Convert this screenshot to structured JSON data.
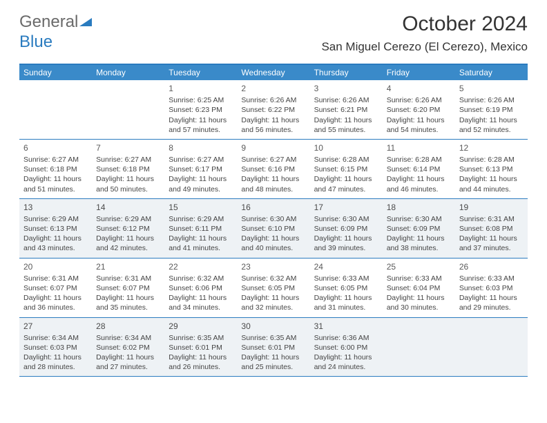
{
  "logo": {
    "text1": "General",
    "text2": "Blue"
  },
  "title": "October 2024",
  "location": "San Miguel Cerezo (El Cerezo), Mexico",
  "colors": {
    "header_bg": "#3a8ac9",
    "border": "#2a7bbf",
    "shaded": "#eef2f5",
    "text": "#333333"
  },
  "day_names": [
    "Sunday",
    "Monday",
    "Tuesday",
    "Wednesday",
    "Thursday",
    "Friday",
    "Saturday"
  ],
  "weeks": [
    [
      {
        "day": "",
        "sunrise": "",
        "sunset": "",
        "daylight": ""
      },
      {
        "day": "",
        "sunrise": "",
        "sunset": "",
        "daylight": ""
      },
      {
        "day": "1",
        "sunrise": "Sunrise: 6:25 AM",
        "sunset": "Sunset: 6:23 PM",
        "daylight": "Daylight: 11 hours and 57 minutes."
      },
      {
        "day": "2",
        "sunrise": "Sunrise: 6:26 AM",
        "sunset": "Sunset: 6:22 PM",
        "daylight": "Daylight: 11 hours and 56 minutes."
      },
      {
        "day": "3",
        "sunrise": "Sunrise: 6:26 AM",
        "sunset": "Sunset: 6:21 PM",
        "daylight": "Daylight: 11 hours and 55 minutes."
      },
      {
        "day": "4",
        "sunrise": "Sunrise: 6:26 AM",
        "sunset": "Sunset: 6:20 PM",
        "daylight": "Daylight: 11 hours and 54 minutes."
      },
      {
        "day": "5",
        "sunrise": "Sunrise: 6:26 AM",
        "sunset": "Sunset: 6:19 PM",
        "daylight": "Daylight: 11 hours and 52 minutes."
      }
    ],
    [
      {
        "day": "6",
        "sunrise": "Sunrise: 6:27 AM",
        "sunset": "Sunset: 6:18 PM",
        "daylight": "Daylight: 11 hours and 51 minutes."
      },
      {
        "day": "7",
        "sunrise": "Sunrise: 6:27 AM",
        "sunset": "Sunset: 6:18 PM",
        "daylight": "Daylight: 11 hours and 50 minutes."
      },
      {
        "day": "8",
        "sunrise": "Sunrise: 6:27 AM",
        "sunset": "Sunset: 6:17 PM",
        "daylight": "Daylight: 11 hours and 49 minutes."
      },
      {
        "day": "9",
        "sunrise": "Sunrise: 6:27 AM",
        "sunset": "Sunset: 6:16 PM",
        "daylight": "Daylight: 11 hours and 48 minutes."
      },
      {
        "day": "10",
        "sunrise": "Sunrise: 6:28 AM",
        "sunset": "Sunset: 6:15 PM",
        "daylight": "Daylight: 11 hours and 47 minutes."
      },
      {
        "day": "11",
        "sunrise": "Sunrise: 6:28 AM",
        "sunset": "Sunset: 6:14 PM",
        "daylight": "Daylight: 11 hours and 46 minutes."
      },
      {
        "day": "12",
        "sunrise": "Sunrise: 6:28 AM",
        "sunset": "Sunset: 6:13 PM",
        "daylight": "Daylight: 11 hours and 44 minutes."
      }
    ],
    [
      {
        "day": "13",
        "sunrise": "Sunrise: 6:29 AM",
        "sunset": "Sunset: 6:13 PM",
        "daylight": "Daylight: 11 hours and 43 minutes."
      },
      {
        "day": "14",
        "sunrise": "Sunrise: 6:29 AM",
        "sunset": "Sunset: 6:12 PM",
        "daylight": "Daylight: 11 hours and 42 minutes."
      },
      {
        "day": "15",
        "sunrise": "Sunrise: 6:29 AM",
        "sunset": "Sunset: 6:11 PM",
        "daylight": "Daylight: 11 hours and 41 minutes."
      },
      {
        "day": "16",
        "sunrise": "Sunrise: 6:30 AM",
        "sunset": "Sunset: 6:10 PM",
        "daylight": "Daylight: 11 hours and 40 minutes."
      },
      {
        "day": "17",
        "sunrise": "Sunrise: 6:30 AM",
        "sunset": "Sunset: 6:09 PM",
        "daylight": "Daylight: 11 hours and 39 minutes."
      },
      {
        "day": "18",
        "sunrise": "Sunrise: 6:30 AM",
        "sunset": "Sunset: 6:09 PM",
        "daylight": "Daylight: 11 hours and 38 minutes."
      },
      {
        "day": "19",
        "sunrise": "Sunrise: 6:31 AM",
        "sunset": "Sunset: 6:08 PM",
        "daylight": "Daylight: 11 hours and 37 minutes."
      }
    ],
    [
      {
        "day": "20",
        "sunrise": "Sunrise: 6:31 AM",
        "sunset": "Sunset: 6:07 PM",
        "daylight": "Daylight: 11 hours and 36 minutes."
      },
      {
        "day": "21",
        "sunrise": "Sunrise: 6:31 AM",
        "sunset": "Sunset: 6:07 PM",
        "daylight": "Daylight: 11 hours and 35 minutes."
      },
      {
        "day": "22",
        "sunrise": "Sunrise: 6:32 AM",
        "sunset": "Sunset: 6:06 PM",
        "daylight": "Daylight: 11 hours and 34 minutes."
      },
      {
        "day": "23",
        "sunrise": "Sunrise: 6:32 AM",
        "sunset": "Sunset: 6:05 PM",
        "daylight": "Daylight: 11 hours and 32 minutes."
      },
      {
        "day": "24",
        "sunrise": "Sunrise: 6:33 AM",
        "sunset": "Sunset: 6:05 PM",
        "daylight": "Daylight: 11 hours and 31 minutes."
      },
      {
        "day": "25",
        "sunrise": "Sunrise: 6:33 AM",
        "sunset": "Sunset: 6:04 PM",
        "daylight": "Daylight: 11 hours and 30 minutes."
      },
      {
        "day": "26",
        "sunrise": "Sunrise: 6:33 AM",
        "sunset": "Sunset: 6:03 PM",
        "daylight": "Daylight: 11 hours and 29 minutes."
      }
    ],
    [
      {
        "day": "27",
        "sunrise": "Sunrise: 6:34 AM",
        "sunset": "Sunset: 6:03 PM",
        "daylight": "Daylight: 11 hours and 28 minutes."
      },
      {
        "day": "28",
        "sunrise": "Sunrise: 6:34 AM",
        "sunset": "Sunset: 6:02 PM",
        "daylight": "Daylight: 11 hours and 27 minutes."
      },
      {
        "day": "29",
        "sunrise": "Sunrise: 6:35 AM",
        "sunset": "Sunset: 6:01 PM",
        "daylight": "Daylight: 11 hours and 26 minutes."
      },
      {
        "day": "30",
        "sunrise": "Sunrise: 6:35 AM",
        "sunset": "Sunset: 6:01 PM",
        "daylight": "Daylight: 11 hours and 25 minutes."
      },
      {
        "day": "31",
        "sunrise": "Sunrise: 6:36 AM",
        "sunset": "Sunset: 6:00 PM",
        "daylight": "Daylight: 11 hours and 24 minutes."
      },
      {
        "day": "",
        "sunrise": "",
        "sunset": "",
        "daylight": ""
      },
      {
        "day": "",
        "sunrise": "",
        "sunset": "",
        "daylight": ""
      }
    ]
  ],
  "shaded_rows": [
    2,
    4
  ]
}
